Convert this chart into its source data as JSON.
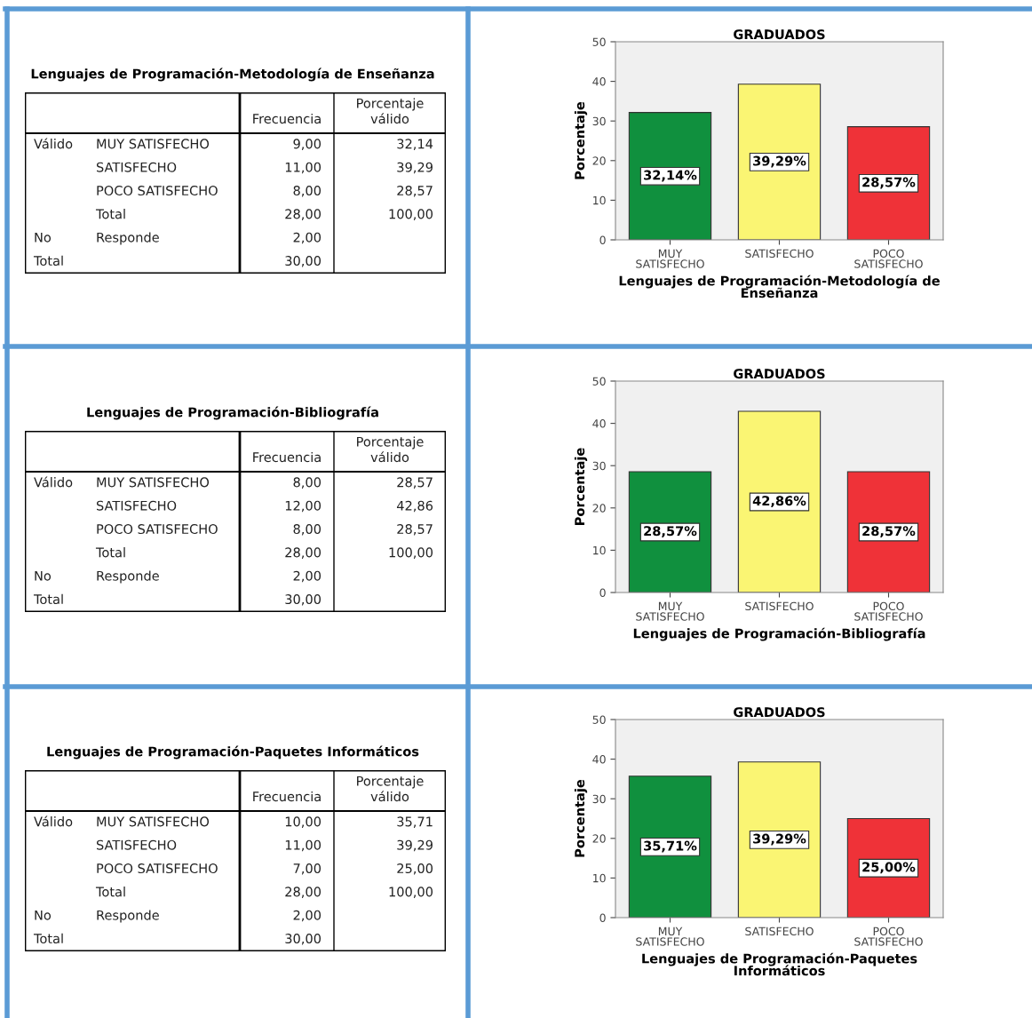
{
  "chart_data": [
    {
      "type": "other",
      "title": "Lenguajes de Programación-Metodología de Enseñanza",
      "categories": [
        null,
        null,
        "Frecuencia",
        "Porcentaje\nválido"
      ],
      "cell_labels": [
        [
          "Válido",
          "MUY SATISFECHO",
          "9,00",
          "32,14"
        ],
        [
          null,
          "SATISFECHO",
          "11,00",
          "39,29"
        ],
        [
          null,
          "POCO SATISFECHO",
          "8,00",
          "28,57"
        ],
        [
          null,
          "Total",
          "28,00",
          "100,00"
        ],
        [
          "No",
          "Responde",
          "2,00",
          null
        ],
        [
          "Total",
          null,
          "30,00",
          null
        ]
      ]
    },
    {
      "type": "bar",
      "title": "GRADUADOS",
      "xlabel": "Lenguajes de Programación-Metodología de\nEnseñanza",
      "ylabel": "Porcentaje",
      "categories": [
        "MUY\nSATISFECHO",
        "SATISFECHO",
        "POCO\nSATISFECHO"
      ],
      "values": [
        32.14,
        39.29,
        28.57
      ],
      "colors": [
        "#10903e",
        "#faf573",
        "#ef3238"
      ],
      "value_labels": [
        "32,14%",
        "39,29%",
        "28,57%"
      ],
      "ylim": [
        0,
        50
      ],
      "yticks": [
        0,
        10,
        20,
        30,
        40,
        50
      ],
      "grid": false
    },
    {
      "type": "other",
      "title": "Lenguajes de Programación-Bibliografía",
      "categories": [
        null,
        null,
        "Frecuencia",
        "Porcentaje\nválido"
      ],
      "cell_labels": [
        [
          "Válido",
          "MUY SATISFECHO",
          "8,00",
          "28,57"
        ],
        [
          null,
          "SATISFECHO",
          "12,00",
          "42,86"
        ],
        [
          null,
          "POCO SATISFECHO",
          "8,00",
          "28,57"
        ],
        [
          null,
          "Total",
          "28,00",
          "100,00"
        ],
        [
          "No",
          "Responde",
          "2,00",
          null
        ],
        [
          "Total",
          null,
          "30,00",
          null
        ]
      ]
    },
    {
      "type": "bar",
      "title": "GRADUADOS",
      "xlabel": "Lenguajes de Programación-Bibliografía",
      "ylabel": "Porcentaje",
      "categories": [
        "MUY\nSATISFECHO",
        "SATISFECHO",
        "POCO\nSATISFECHO"
      ],
      "values": [
        28.57,
        42.86,
        28.57
      ],
      "colors": [
        "#10903e",
        "#faf573",
        "#ef3238"
      ],
      "value_labels": [
        "28,57%",
        "42,86%",
        "28,57%"
      ],
      "ylim": [
        0,
        50
      ],
      "yticks": [
        0,
        10,
        20,
        30,
        40,
        50
      ],
      "grid": false
    },
    {
      "type": "other",
      "title": "Lenguajes de Programación-Paquetes Informáticos",
      "categories": [
        null,
        null,
        "Frecuencia",
        "Porcentaje\nválido"
      ],
      "cell_labels": [
        [
          "Válido",
          "MUY SATISFECHO",
          "10,00",
          "35,71"
        ],
        [
          null,
          "SATISFECHO",
          "11,00",
          "39,29"
        ],
        [
          null,
          "POCO SATISFECHO",
          "7,00",
          "25,00"
        ],
        [
          null,
          "Total",
          "28,00",
          "100,00"
        ],
        [
          "No",
          "Responde",
          "2,00",
          null
        ],
        [
          "Total",
          null,
          "30,00",
          null
        ]
      ]
    },
    {
      "type": "bar",
      "title": "GRADUADOS",
      "xlabel": "Lenguajes de Programación-Paquetes\nInformáticos",
      "ylabel": "Porcentaje",
      "categories": [
        "MUY\nSATISFECHO",
        "SATISFECHO",
        "POCO\nSATISFECHO"
      ],
      "values": [
        35.71,
        39.29,
        25.0
      ],
      "colors": [
        "#10903e",
        "#faf573",
        "#ef3238"
      ],
      "value_labels": [
        "35,71%",
        "39,29%",
        "25,00%"
      ],
      "ylim": [
        0,
        50
      ],
      "yticks": [
        0,
        10,
        20,
        30,
        40,
        50
      ],
      "grid": false
    }
  ]
}
